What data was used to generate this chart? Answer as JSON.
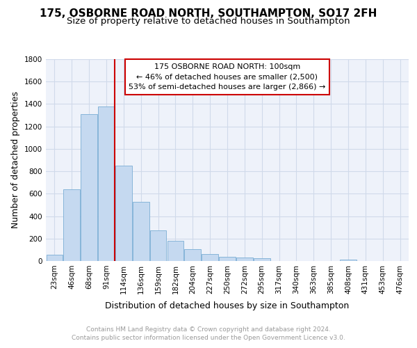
{
  "title": "175, OSBORNE ROAD NORTH, SOUTHAMPTON, SO17 2FH",
  "subtitle": "Size of property relative to detached houses in Southampton",
  "xlabel": "Distribution of detached houses by size in Southampton",
  "ylabel": "Number of detached properties",
  "categories": [
    "23sqm",
    "46sqm",
    "68sqm",
    "91sqm",
    "114sqm",
    "136sqm",
    "159sqm",
    "182sqm",
    "204sqm",
    "227sqm",
    "250sqm",
    "272sqm",
    "295sqm",
    "317sqm",
    "340sqm",
    "363sqm",
    "385sqm",
    "408sqm",
    "431sqm",
    "453sqm",
    "476sqm"
  ],
  "values": [
    55,
    640,
    1310,
    1380,
    850,
    525,
    275,
    180,
    107,
    65,
    38,
    32,
    22,
    0,
    0,
    0,
    0,
    15,
    0,
    0,
    0
  ],
  "bar_color": "#c5d9f0",
  "bar_edge_color": "#7aadd4",
  "bg_color": "#eef2fa",
  "grid_color": "#d0daea",
  "annotation_box_text": "175 OSBORNE ROAD NORTH: 100sqm\n← 46% of detached houses are smaller (2,500)\n53% of semi-detached houses are larger (2,866) →",
  "annotation_box_color": "#cc0000",
  "annotation_box_bg": "#ffffff",
  "vline_x": 3.5,
  "vline_color": "#cc0000",
  "ylim": [
    0,
    1800
  ],
  "yticks": [
    0,
    200,
    400,
    600,
    800,
    1000,
    1200,
    1400,
    1600,
    1800
  ],
  "footer_text": "Contains HM Land Registry data © Crown copyright and database right 2024.\nContains public sector information licensed under the Open Government Licence v3.0.",
  "title_fontsize": 11,
  "subtitle_fontsize": 9.5,
  "axis_label_fontsize": 9,
  "tick_fontsize": 7.5,
  "annotation_fontsize": 8,
  "footer_fontsize": 6.5
}
